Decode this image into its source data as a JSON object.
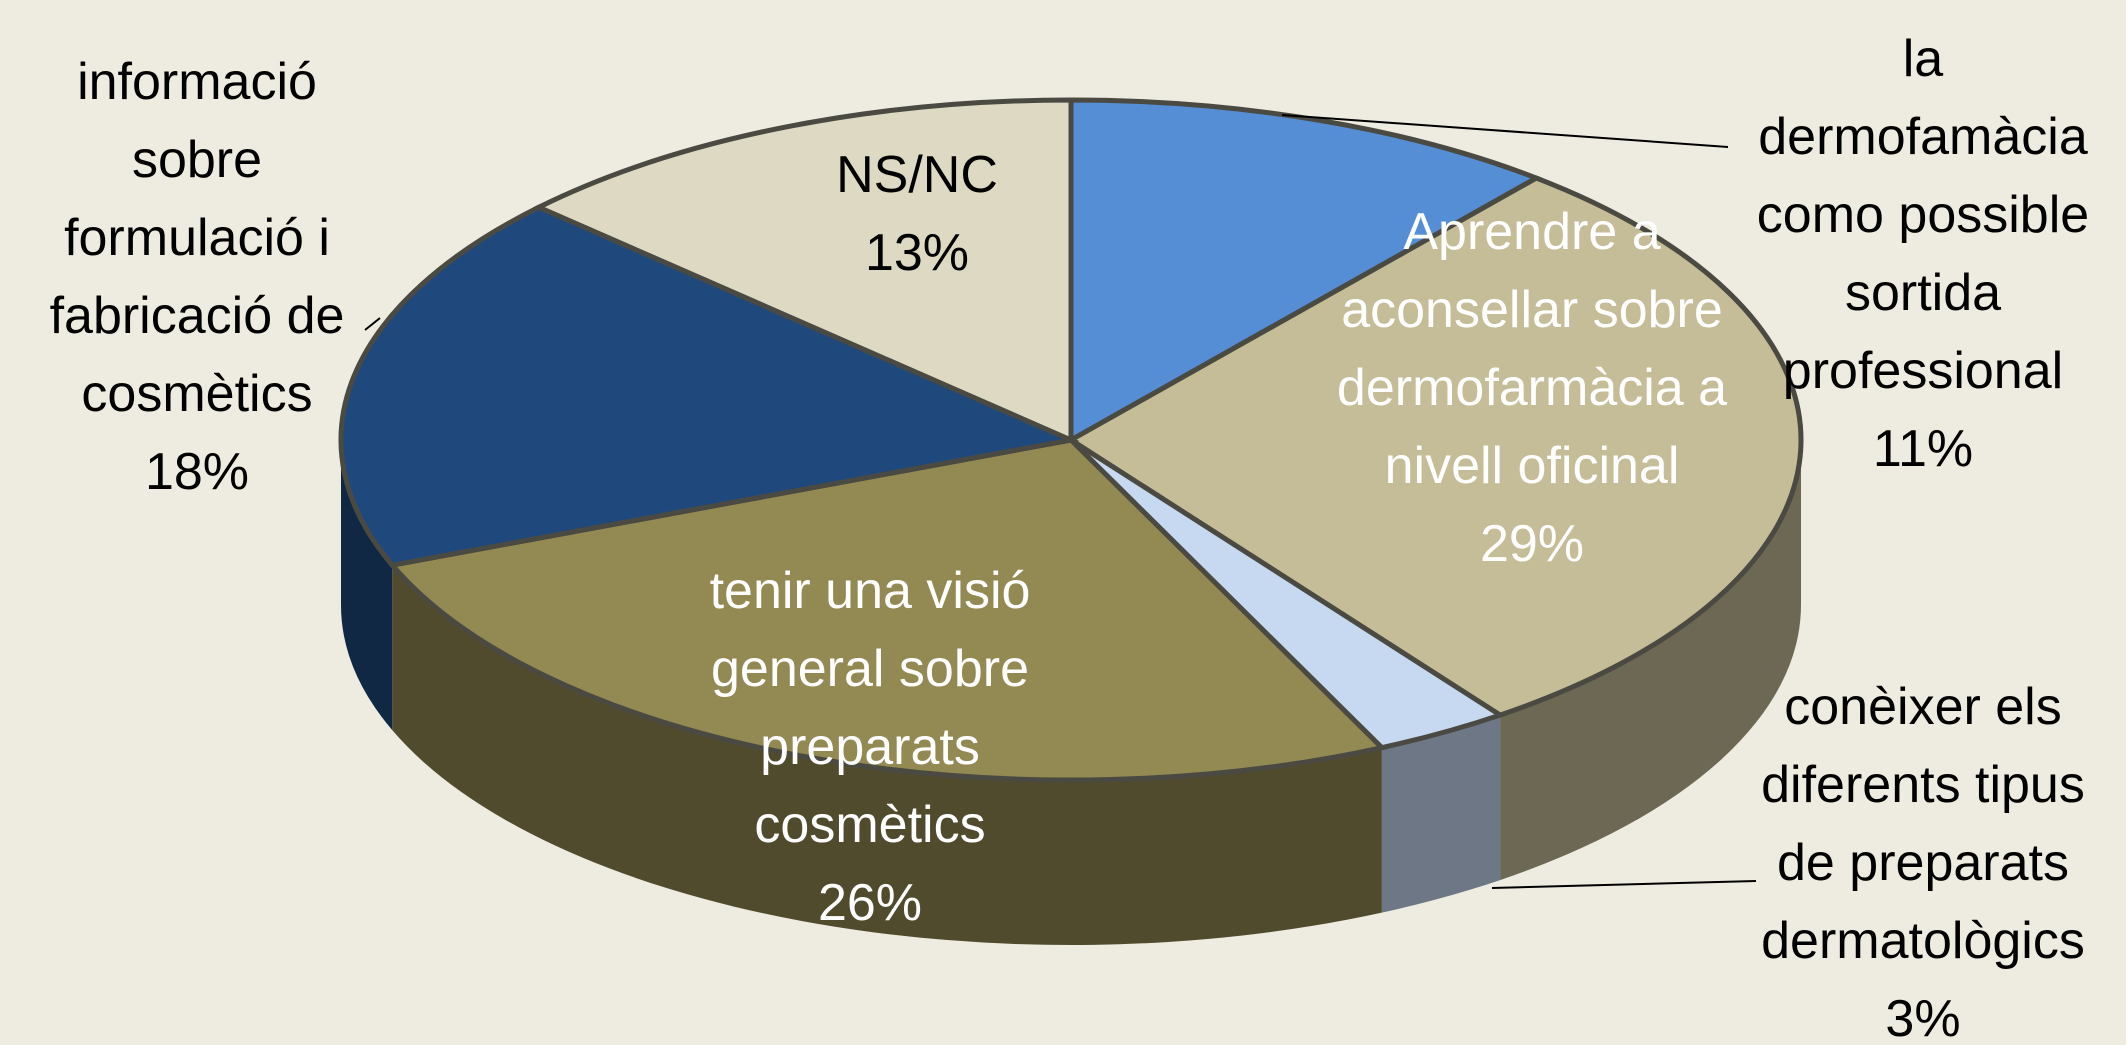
{
  "chart_data": {
    "type": "pie3d",
    "categories": [
      "la dermofamàcia como possible sortida professional",
      "Aprendre a aconsellar sobre dermofarmàcia a nivell oficinal",
      "conèixer els diferents tipus de preparats dermatològics",
      "tenir una visió general sobre preparats cosmètics",
      "informació sobre formulació i fabricació de cosmètics",
      "NS/NC"
    ],
    "values": [
      11,
      29,
      3,
      26,
      18,
      13
    ],
    "value_labels": [
      "11%",
      "29%",
      "3%",
      "26%",
      "18%",
      "13%"
    ],
    "colors": [
      "#558ed5",
      "#c4bd97",
      "#c6d9f1",
      "#938953",
      "#1f497d",
      "#ddd9c3"
    ]
  }
}
